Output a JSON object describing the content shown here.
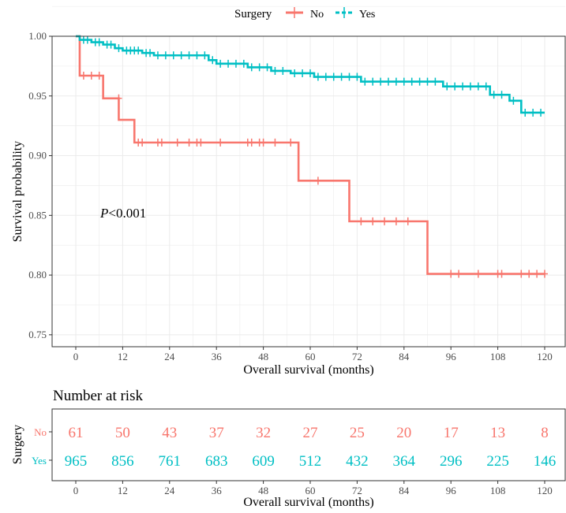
{
  "chart_data": [
    {
      "type": "line",
      "subtype": "kaplan-meier",
      "legend": {
        "title": "Surgery",
        "position": "top",
        "entries": [
          "No",
          "Yes"
        ]
      },
      "xlabel": "Overall survival (months)",
      "ylabel": "Survival probability",
      "xlim": [
        0,
        120
      ],
      "ylim": [
        0.74,
        1.0
      ],
      "xticks": [
        0,
        12,
        24,
        36,
        48,
        60,
        72,
        84,
        96,
        108,
        120
      ],
      "yticks": [
        "0.75",
        "0.80",
        "0.85",
        "0.90",
        "0.95",
        "1.00"
      ],
      "grid": true,
      "annotation": {
        "italic": "P",
        "rest": "<0.001"
      },
      "series": [
        {
          "name": "No",
          "color": "#F8766D",
          "steps": [
            [
              0,
              1.0
            ],
            [
              1,
              0.967
            ],
            [
              7,
              0.948
            ],
            [
              11,
              0.93
            ],
            [
              15,
              0.911
            ],
            [
              57,
              0.879
            ],
            [
              70,
              0.845
            ],
            [
              90,
              0.801
            ],
            [
              120,
              0.801
            ]
          ],
          "censored": [
            [
              2,
              0.967
            ],
            [
              4,
              0.967
            ],
            [
              6,
              0.967
            ],
            [
              11,
              0.948
            ],
            [
              16,
              0.911
            ],
            [
              17,
              0.911
            ],
            [
              21,
              0.911
            ],
            [
              22,
              0.911
            ],
            [
              26,
              0.911
            ],
            [
              29,
              0.911
            ],
            [
              31,
              0.911
            ],
            [
              32,
              0.911
            ],
            [
              37,
              0.911
            ],
            [
              44,
              0.911
            ],
            [
              45,
              0.911
            ],
            [
              47,
              0.911
            ],
            [
              48,
              0.911
            ],
            [
              51,
              0.911
            ],
            [
              55,
              0.911
            ],
            [
              62,
              0.879
            ],
            [
              73,
              0.845
            ],
            [
              76,
              0.845
            ],
            [
              79,
              0.845
            ],
            [
              82,
              0.845
            ],
            [
              85,
              0.845
            ],
            [
              96,
              0.801
            ],
            [
              98,
              0.801
            ],
            [
              103,
              0.801
            ],
            [
              108,
              0.801
            ],
            [
              109,
              0.801
            ],
            [
              114,
              0.801
            ],
            [
              116,
              0.801
            ],
            [
              118,
              0.801
            ],
            [
              120,
              0.801
            ]
          ]
        },
        {
          "name": "Yes",
          "color": "#00BFC4",
          "steps": [
            [
              0,
              1.0
            ],
            [
              1,
              0.997
            ],
            [
              4,
              0.995
            ],
            [
              7,
              0.993
            ],
            [
              10,
              0.99
            ],
            [
              12,
              0.988
            ],
            [
              17,
              0.986
            ],
            [
              20,
              0.984
            ],
            [
              34,
              0.98
            ],
            [
              36,
              0.977
            ],
            [
              44,
              0.974
            ],
            [
              50,
              0.971
            ],
            [
              55,
              0.969
            ],
            [
              61,
              0.966
            ],
            [
              73,
              0.962
            ],
            [
              94,
              0.958
            ],
            [
              106,
              0.951
            ],
            [
              111,
              0.946
            ],
            [
              114,
              0.936
            ],
            [
              120,
              0.936
            ]
          ],
          "censored": [
            [
              2,
              0.997
            ],
            [
              3,
              0.997
            ],
            [
              5,
              0.995
            ],
            [
              6,
              0.995
            ],
            [
              8,
              0.993
            ],
            [
              9,
              0.993
            ],
            [
              11,
              0.99
            ],
            [
              13,
              0.988
            ],
            [
              14,
              0.988
            ],
            [
              15,
              0.988
            ],
            [
              16,
              0.988
            ],
            [
              18,
              0.986
            ],
            [
              19,
              0.986
            ],
            [
              21,
              0.984
            ],
            [
              23,
              0.984
            ],
            [
              25,
              0.984
            ],
            [
              27,
              0.984
            ],
            [
              29,
              0.984
            ],
            [
              31,
              0.984
            ],
            [
              33,
              0.984
            ],
            [
              35,
              0.98
            ],
            [
              37,
              0.977
            ],
            [
              39,
              0.977
            ],
            [
              41,
              0.977
            ],
            [
              43,
              0.977
            ],
            [
              45,
              0.974
            ],
            [
              47,
              0.974
            ],
            [
              49,
              0.974
            ],
            [
              51,
              0.971
            ],
            [
              53,
              0.971
            ],
            [
              56,
              0.969
            ],
            [
              58,
              0.969
            ],
            [
              60,
              0.969
            ],
            [
              62,
              0.966
            ],
            [
              64,
              0.966
            ],
            [
              66,
              0.966
            ],
            [
              68,
              0.966
            ],
            [
              70,
              0.966
            ],
            [
              72,
              0.966
            ],
            [
              74,
              0.962
            ],
            [
              76,
              0.962
            ],
            [
              78,
              0.962
            ],
            [
              80,
              0.962
            ],
            [
              82,
              0.962
            ],
            [
              84,
              0.962
            ],
            [
              86,
              0.962
            ],
            [
              88,
              0.962
            ],
            [
              90,
              0.962
            ],
            [
              92,
              0.962
            ],
            [
              95,
              0.958
            ],
            [
              97,
              0.958
            ],
            [
              99,
              0.958
            ],
            [
              101,
              0.958
            ],
            [
              103,
              0.958
            ],
            [
              105,
              0.958
            ],
            [
              107,
              0.951
            ],
            [
              109,
              0.951
            ],
            [
              112,
              0.946
            ],
            [
              115,
              0.936
            ],
            [
              117,
              0.936
            ],
            [
              119,
              0.936
            ]
          ]
        }
      ]
    },
    {
      "type": "table",
      "title": "Number at risk",
      "ylabel": "Surgery",
      "xlabel": "Overall survival (months)",
      "xlim": [
        0,
        120
      ],
      "xticks": [
        0,
        12,
        24,
        36,
        48,
        60,
        72,
        84,
        96,
        108,
        120
      ],
      "rows": [
        {
          "name": "No",
          "color": "#F8766D",
          "values": [
            61,
            50,
            43,
            37,
            32,
            27,
            25,
            20,
            17,
            13,
            8
          ]
        },
        {
          "name": "Yes",
          "color": "#00BFC4",
          "values": [
            965,
            856,
            761,
            683,
            609,
            512,
            432,
            364,
            296,
            225,
            146
          ]
        }
      ]
    }
  ]
}
